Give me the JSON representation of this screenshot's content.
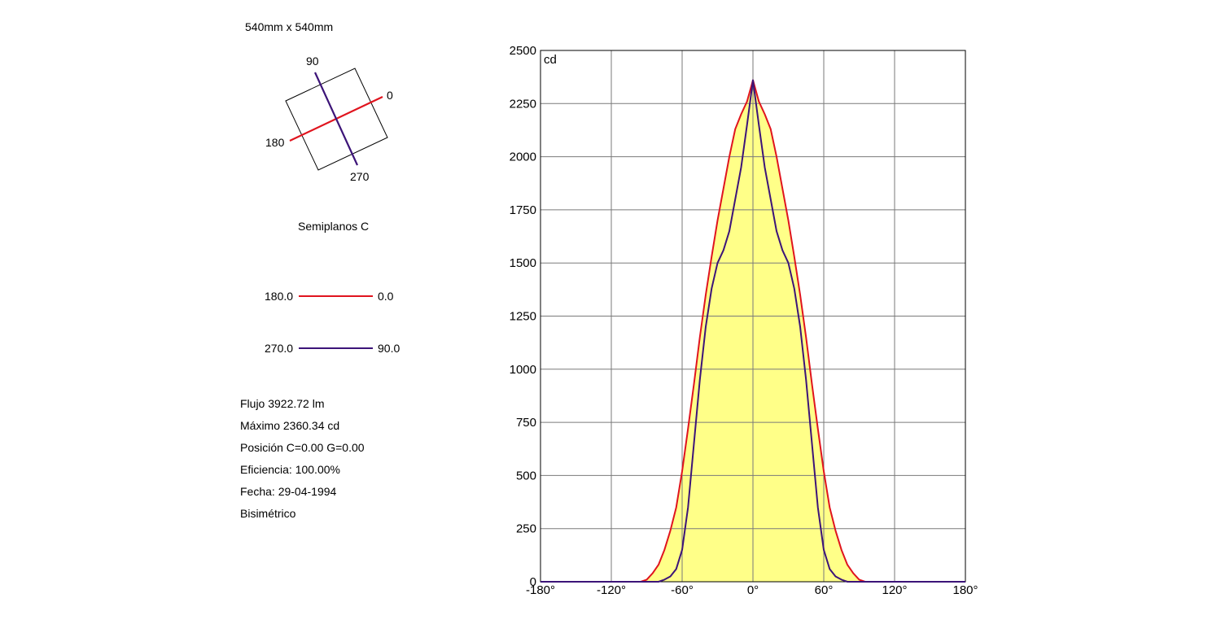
{
  "header": {
    "dimensions": "540mm x 540mm"
  },
  "orientation": {
    "c0": "0",
    "c90": "90",
    "c180": "180",
    "c270": "270"
  },
  "semiplanes_title": "Semiplanos C",
  "legend": [
    {
      "left": "180.0",
      "right": "0.0",
      "color": "#e0141e"
    },
    {
      "left": "270.0",
      "right": "90.0",
      "color": "#3c1478"
    }
  ],
  "info": {
    "flujo": "Flujo 3922.72  lm",
    "maximo": "Máximo 2360.34  cd",
    "posicion": "Posición C=0.00 G=0.00",
    "eficiencia": "Eficiencia: 100.00%",
    "fecha": "Fecha: 29-04-1994",
    "tipo": "Bisimétrico"
  },
  "colors": {
    "fill": "#ffff88",
    "c0_180": "#e0141e",
    "c90_270": "#3c1478",
    "grid": "#7a7a7a"
  },
  "chart_data": {
    "type": "line",
    "title": "",
    "xlabel": "",
    "ylabel": "cd",
    "xlim": [
      -180,
      180
    ],
    "ylim": [
      0,
      2500
    ],
    "x_ticks": [
      "-180°",
      "-120°",
      "-60°",
      "0°",
      "60°",
      "120°",
      "180°"
    ],
    "y_ticks": [
      "0",
      "250",
      "500",
      "750",
      "1000",
      "1250",
      "1500",
      "1750",
      "2000",
      "2250",
      "2500"
    ],
    "grid": true,
    "series": [
      {
        "name": "180.0 - 0.0",
        "color": "#e0141e",
        "filled": true,
        "x": [
          -180,
          -95,
          -90,
          -85,
          -80,
          -75,
          -70,
          -65,
          -60,
          -55,
          -50,
          -45,
          -40,
          -35,
          -30,
          -25,
          -20,
          -15,
          -10,
          -5,
          0,
          5,
          10,
          15,
          20,
          25,
          30,
          35,
          40,
          45,
          50,
          55,
          60,
          65,
          70,
          75,
          80,
          85,
          90,
          95,
          180
        ],
        "y": [
          0,
          0,
          10,
          40,
          80,
          150,
          240,
          350,
          520,
          720,
          930,
          1150,
          1350,
          1530,
          1700,
          1850,
          2000,
          2130,
          2200,
          2260,
          2360,
          2260,
          2200,
          2130,
          2000,
          1850,
          1700,
          1530,
          1350,
          1150,
          930,
          720,
          520,
          350,
          240,
          150,
          80,
          40,
          10,
          0,
          0
        ]
      },
      {
        "name": "270.0 - 90.0",
        "color": "#3c1478",
        "filled": false,
        "x": [
          -180,
          -80,
          -75,
          -70,
          -65,
          -60,
          -55,
          -50,
          -45,
          -40,
          -35,
          -30,
          -25,
          -20,
          -15,
          -10,
          -5,
          0,
          5,
          10,
          15,
          20,
          25,
          30,
          35,
          40,
          45,
          50,
          55,
          60,
          65,
          70,
          75,
          80,
          180
        ],
        "y": [
          0,
          0,
          10,
          25,
          60,
          150,
          350,
          650,
          950,
          1200,
          1380,
          1500,
          1560,
          1650,
          1800,
          1950,
          2150,
          2360,
          2150,
          1950,
          1800,
          1650,
          1560,
          1500,
          1380,
          1200,
          950,
          650,
          350,
          150,
          60,
          25,
          10,
          0,
          0
        ]
      }
    ]
  }
}
